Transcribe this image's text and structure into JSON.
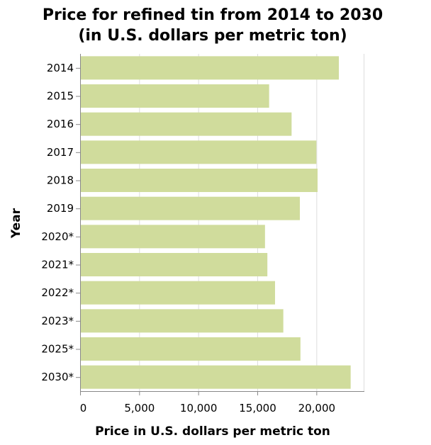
{
  "chart_data": {
    "type": "bar",
    "orientation": "horizontal",
    "title": [
      "Price for refined tin from 2014 to 2030",
      "(in U.S. dollars per metric ton)"
    ],
    "xlabel": "Price in U.S. dollars per metric ton",
    "ylabel": "Year",
    "categories": [
      "2014",
      "2015",
      "2016",
      "2017",
      "2018",
      "2019",
      "2020*",
      "2021*",
      "2022*",
      "2023*",
      "2025*",
      "2030*"
    ],
    "values": [
      21900,
      16000,
      17900,
      20000,
      20100,
      18600,
      15650,
      15850,
      16500,
      17200,
      18650,
      22900
    ],
    "xlim": [
      0,
      24000
    ],
    "xticks": [
      0,
      5000,
      10000,
      15000,
      20000
    ],
    "xtick_labels": [
      "0",
      "5,000",
      "10,000",
      "15,000",
      "20,000"
    ],
    "grid": true,
    "bar_color": "#d0dc9c"
  }
}
